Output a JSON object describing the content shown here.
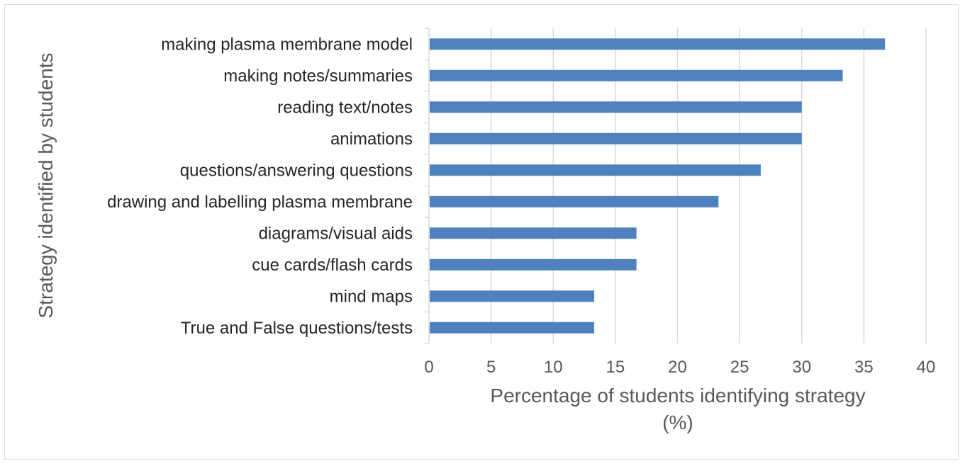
{
  "chart_data": {
    "type": "bar",
    "orientation": "horizontal",
    "categories": [
      "making plasma membrane model",
      "making notes/summaries",
      "reading text/notes",
      "animations",
      "questions/answering questions",
      "drawing and labelling plasma membrane",
      "diagrams/visual aids",
      "cue cards/flash cards",
      "mind maps",
      "True and False questions/tests"
    ],
    "values": [
      36.7,
      33.3,
      30.0,
      30.0,
      26.7,
      23.3,
      16.7,
      16.7,
      13.3,
      13.3
    ],
    "xlabel_line1": "Percentage of students identifying strategy",
    "xlabel_line2": "(%)",
    "ylabel": "Strategy identified by students",
    "xlim": [
      0,
      40
    ],
    "xticks": [
      "0",
      "5",
      "10",
      "15",
      "20",
      "25",
      "30",
      "35",
      "40"
    ],
    "grid": "vertical",
    "bar_color": "#4f81bd",
    "grid_color": "#d9d9d9"
  }
}
